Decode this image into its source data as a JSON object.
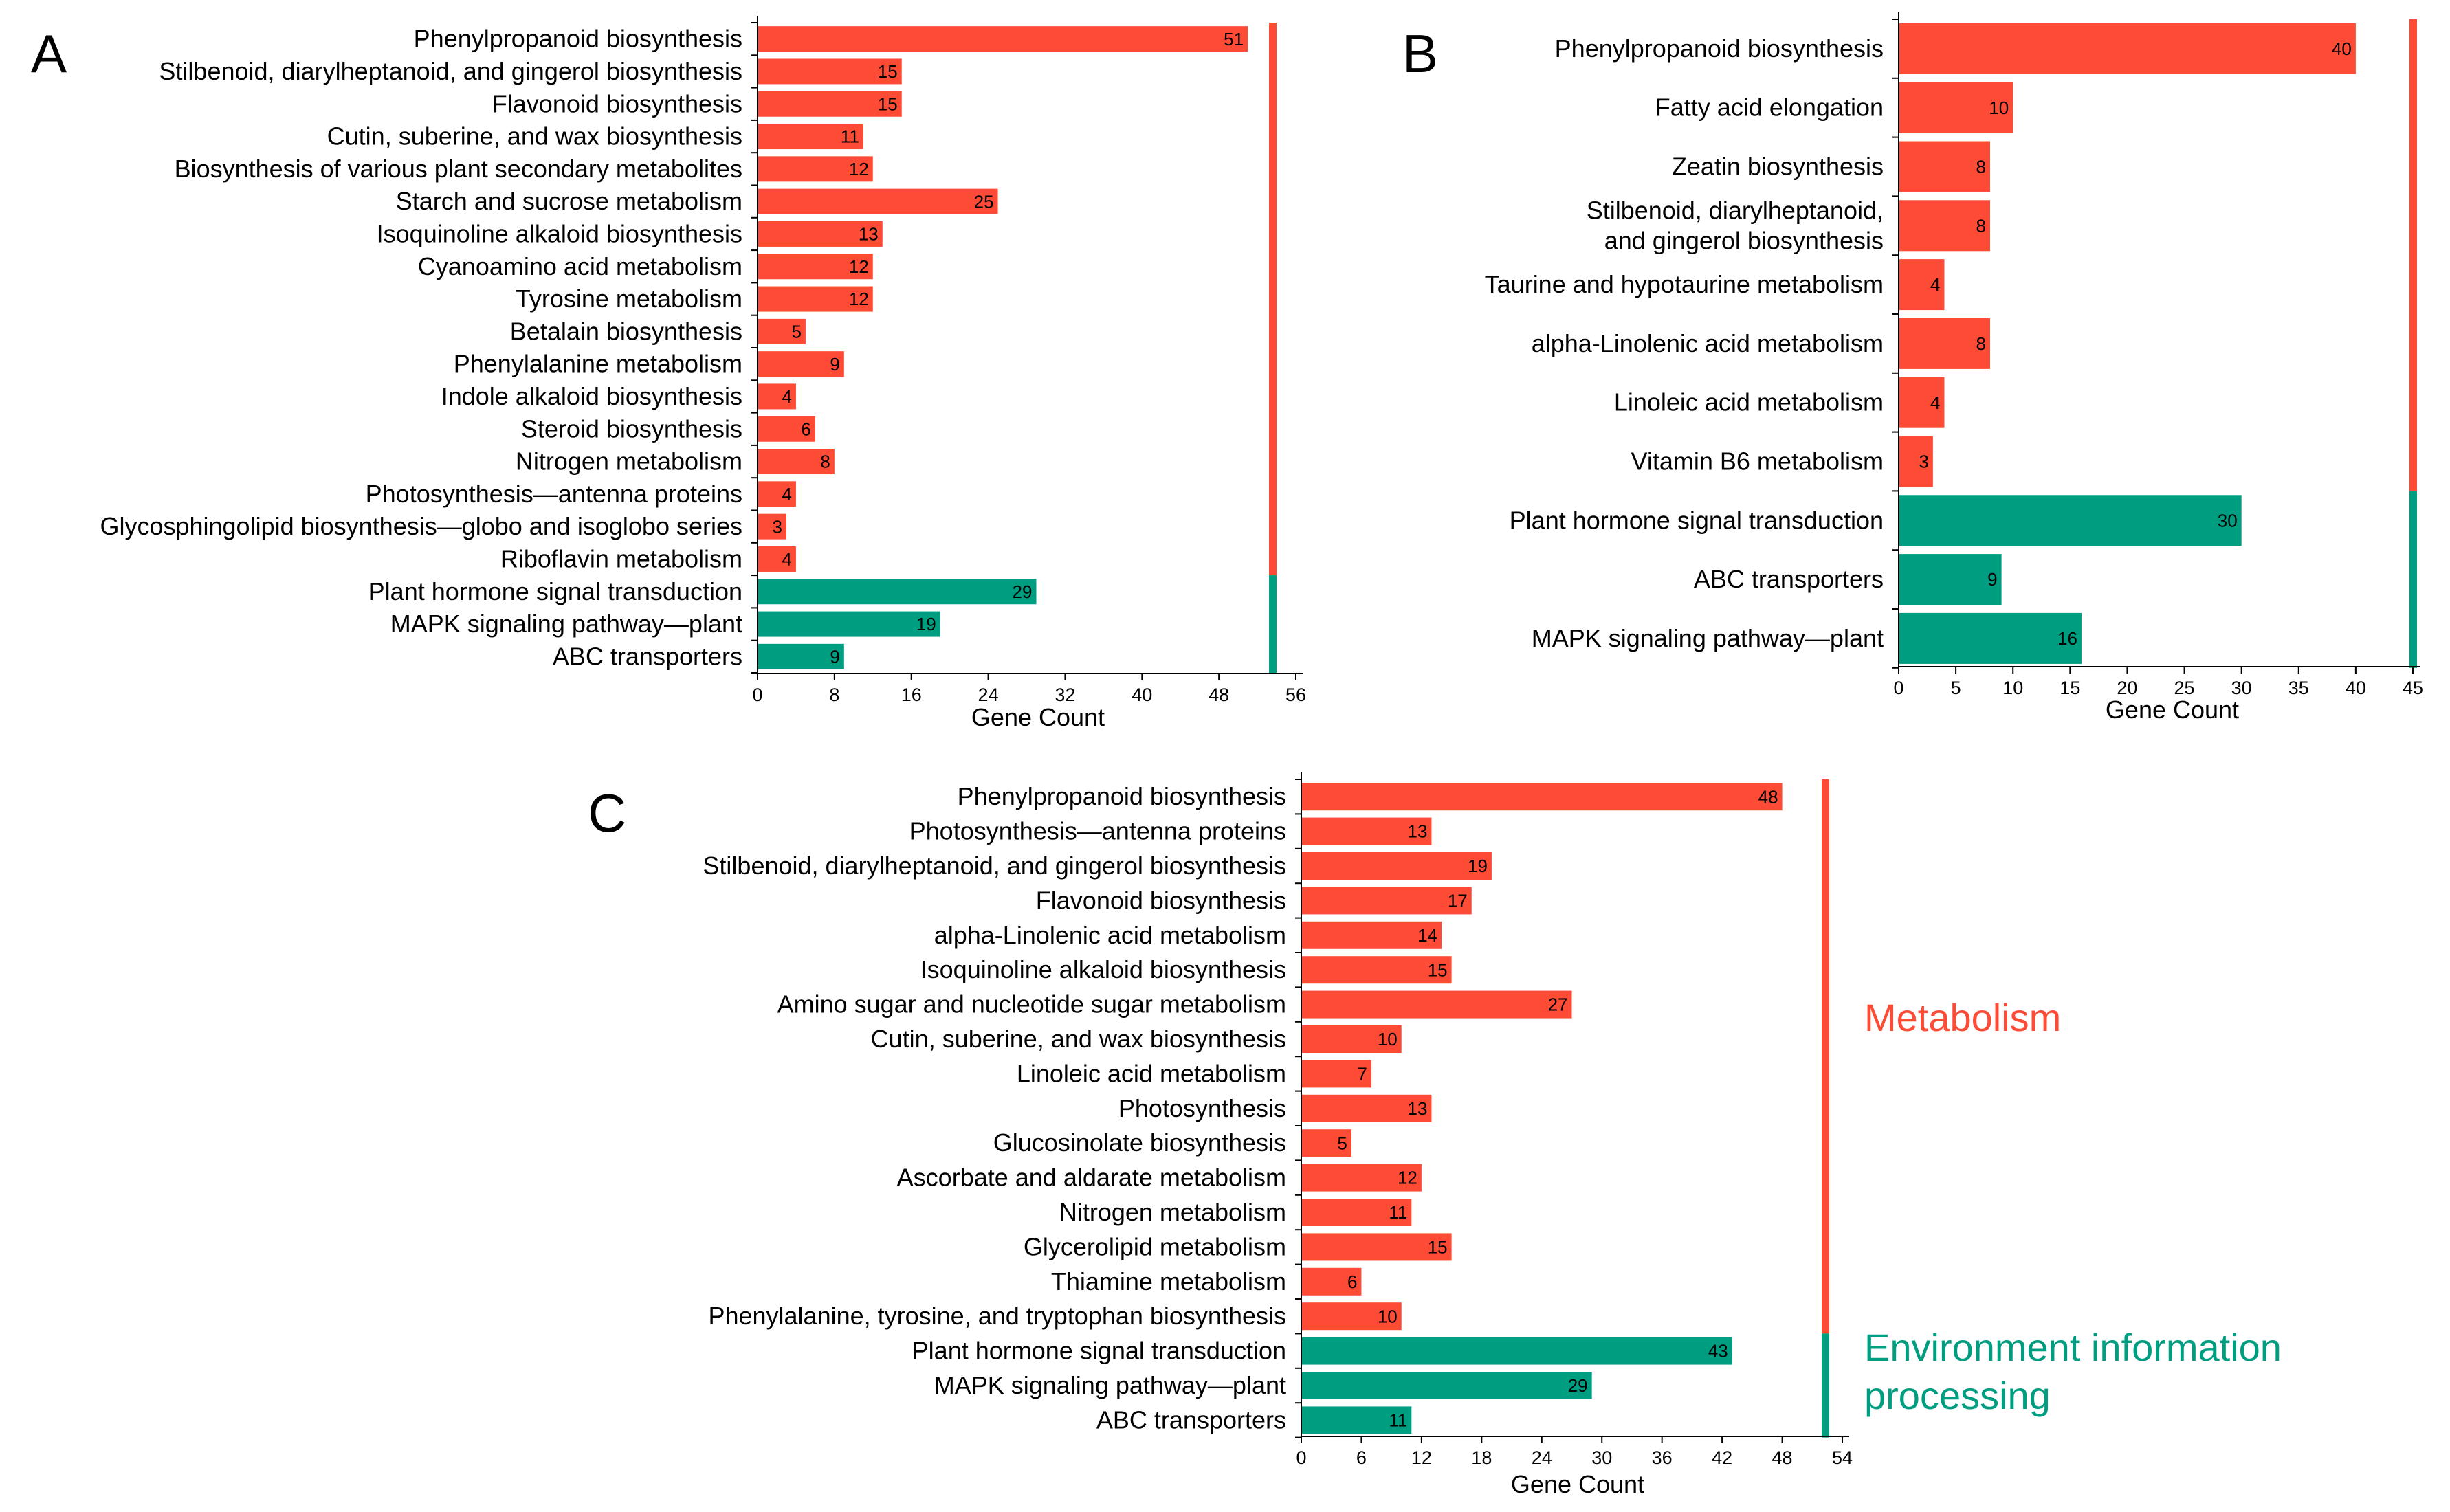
{
  "colors": {
    "metabolism": "#fe4b36",
    "environment": "#009e80"
  },
  "legend": {
    "metabolism": "Metabolism",
    "environment_line1": "Environment information",
    "environment_line2": "processing"
  },
  "chart_data": [
    {
      "panel": "A",
      "type": "bar",
      "orientation": "horizontal",
      "xlabel": "Gene Count",
      "xlim": [
        0,
        56
      ],
      "ticks": [
        0,
        8,
        16,
        24,
        32,
        40,
        48,
        56
      ],
      "categories": [
        "Phenylpropanoid biosynthesis",
        "Stilbenoid, diarylheptanoid, and gingerol biosynthesis",
        "Flavonoid biosynthesis",
        "Cutin, suberine, and wax biosynthesis",
        "Biosynthesis of various plant secondary metabolites",
        "Starch and sucrose metabolism",
        "Isoquinoline alkaloid biosynthesis",
        "Cyanoamino acid metabolism",
        "Tyrosine metabolism",
        "Betalain biosynthesis",
        "Phenylalanine metabolism",
        "Indole alkaloid biosynthesis",
        "Steroid biosynthesis",
        "Nitrogen metabolism",
        "Photosynthesis—antenna proteins",
        "Glycosphingolipid biosynthesis—globo and isoglobo series",
        "Riboflavin metabolism",
        "Plant hormone signal transduction",
        "MAPK signaling pathway—plant",
        "ABC transporters"
      ],
      "values": [
        51,
        15,
        15,
        11,
        12,
        25,
        13,
        12,
        12,
        5,
        9,
        4,
        6,
        8,
        4,
        3,
        4,
        29,
        19,
        9
      ],
      "groups": [
        "metabolism",
        "metabolism",
        "metabolism",
        "metabolism",
        "metabolism",
        "metabolism",
        "metabolism",
        "metabolism",
        "metabolism",
        "metabolism",
        "metabolism",
        "metabolism",
        "metabolism",
        "metabolism",
        "metabolism",
        "metabolism",
        "metabolism",
        "environment",
        "environment",
        "environment"
      ]
    },
    {
      "panel": "B",
      "type": "bar",
      "orientation": "horizontal",
      "xlabel": "Gene Count",
      "xlim": [
        0,
        45
      ],
      "ticks": [
        0,
        5,
        10,
        15,
        20,
        25,
        30,
        35,
        40,
        45
      ],
      "categories": [
        "Phenylpropanoid biosynthesis",
        "Fatty acid elongation",
        "Zeatin biosynthesis",
        [
          "Stilbenoid, diarylheptanoid,",
          "and gingerol biosynthesis"
        ],
        "Taurine and hypotaurine metabolism",
        "alpha-Linolenic acid metabolism",
        "Linoleic acid metabolism",
        "Vitamin B6 metabolism",
        "Plant hormone signal transduction",
        "ABC transporters",
        "MAPK signaling pathway—plant"
      ],
      "values": [
        40,
        10,
        8,
        8,
        4,
        8,
        4,
        3,
        30,
        9,
        16
      ],
      "groups": [
        "metabolism",
        "metabolism",
        "metabolism",
        "metabolism",
        "metabolism",
        "metabolism",
        "metabolism",
        "metabolism",
        "environment",
        "environment",
        "environment"
      ]
    },
    {
      "panel": "C",
      "type": "bar",
      "orientation": "horizontal",
      "xlabel": "Gene Count",
      "xlim": [
        0,
        54
      ],
      "ticks": [
        0,
        6,
        12,
        18,
        24,
        30,
        36,
        42,
        48,
        54
      ],
      "categories": [
        "Phenylpropanoid biosynthesis",
        "Photosynthesis—antenna proteins",
        "Stilbenoid, diarylheptanoid, and gingerol biosynthesis",
        "Flavonoid biosynthesis",
        "alpha-Linolenic acid metabolism",
        "Isoquinoline alkaloid biosynthesis",
        "Amino sugar and nucleotide sugar metabolism",
        "Cutin, suberine, and wax biosynthesis",
        "Linoleic acid metabolism",
        "Photosynthesis",
        "Glucosinolate biosynthesis",
        "Ascorbate and aldarate metabolism",
        "Nitrogen metabolism",
        "Glycerolipid metabolism",
        "Thiamine metabolism",
        "Phenylalanine, tyrosine, and tryptophan biosynthesis",
        "Plant hormone signal transduction",
        "MAPK signaling pathway—plant",
        "ABC transporters"
      ],
      "values": [
        48,
        13,
        19,
        17,
        14,
        15,
        27,
        10,
        7,
        13,
        5,
        12,
        11,
        15,
        6,
        10,
        43,
        29,
        11
      ],
      "groups": [
        "metabolism",
        "metabolism",
        "metabolism",
        "metabolism",
        "metabolism",
        "metabolism",
        "metabolism",
        "metabolism",
        "metabolism",
        "metabolism",
        "metabolism",
        "metabolism",
        "metabolism",
        "metabolism",
        "metabolism",
        "metabolism",
        "environment",
        "environment",
        "environment"
      ]
    }
  ]
}
